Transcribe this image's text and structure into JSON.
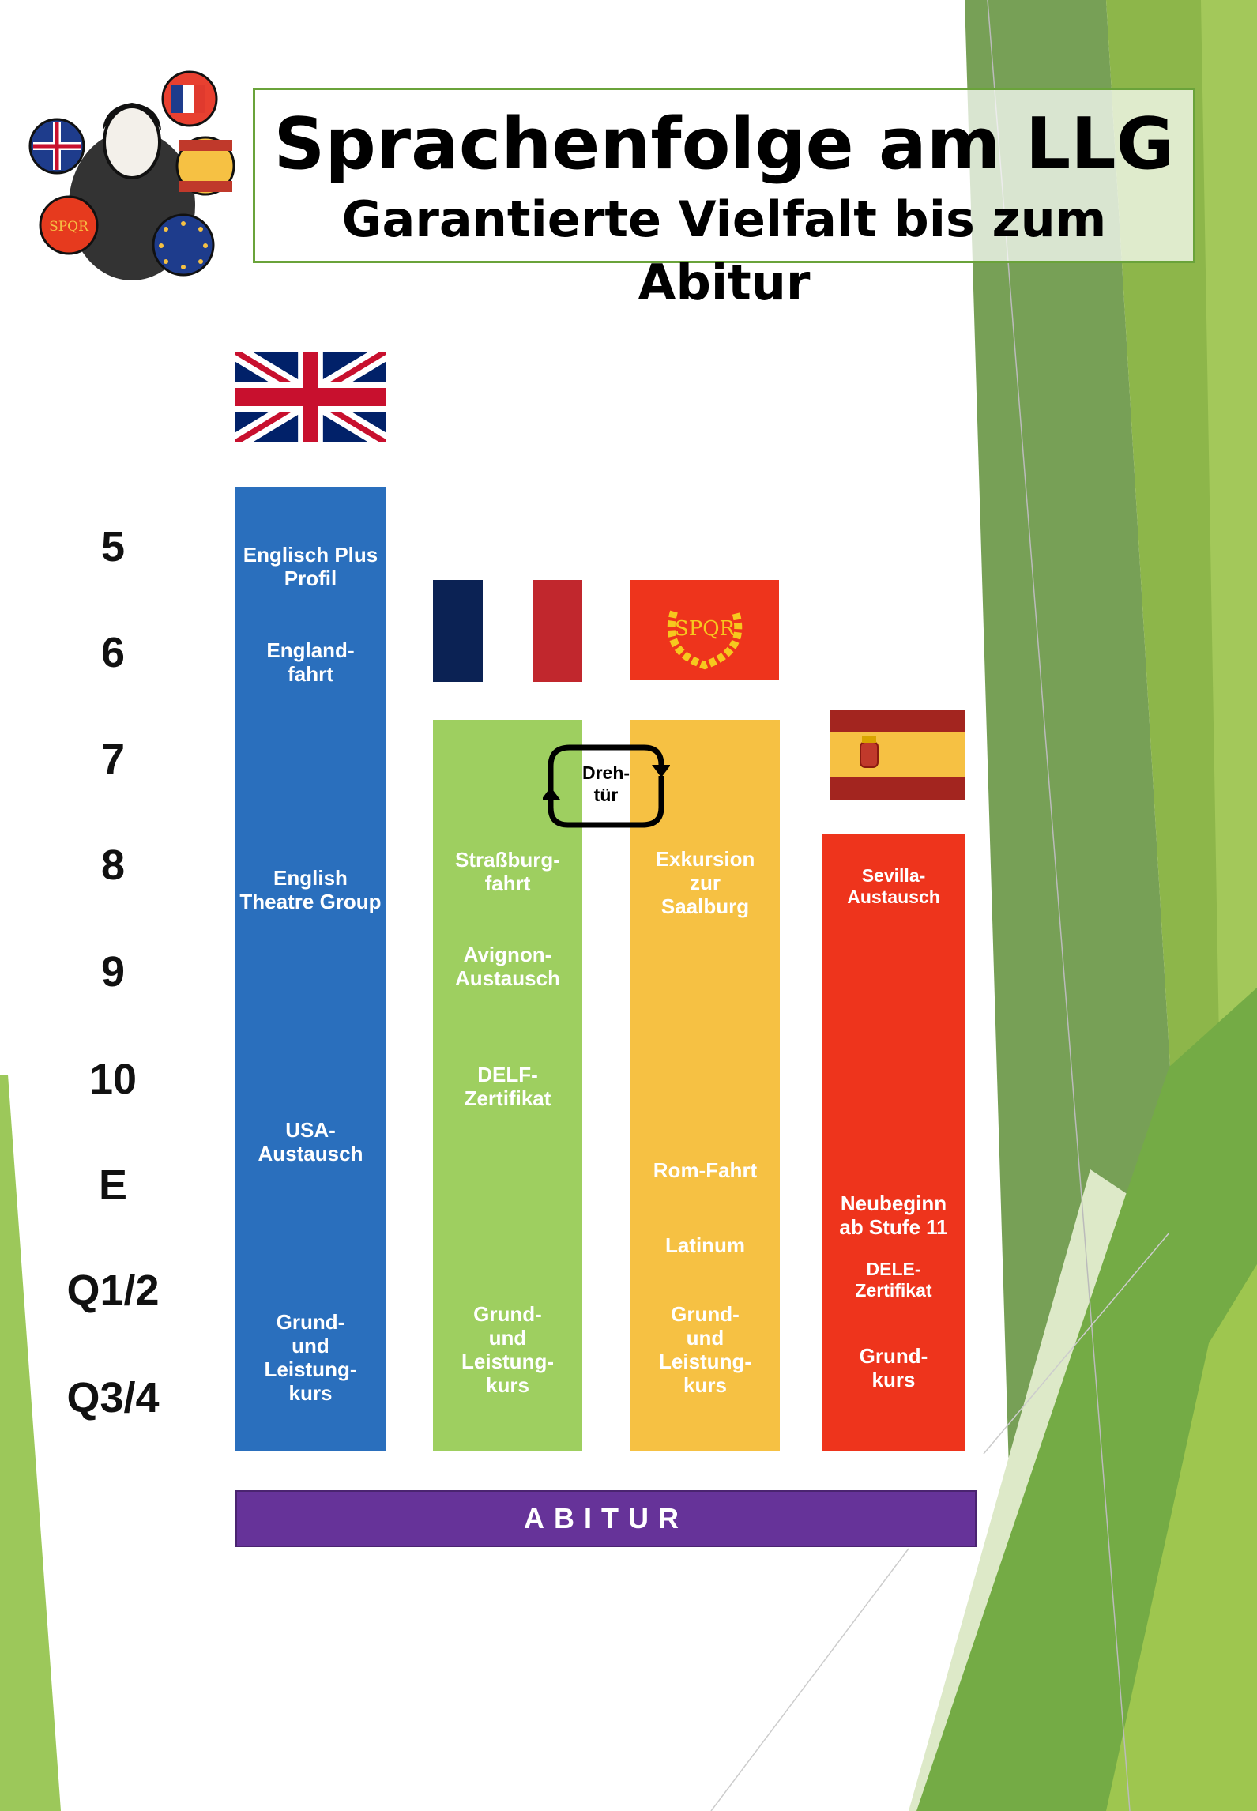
{
  "header": {
    "title": "Sprachenfolge am LLG",
    "subtitle": "Garantierte Vielfalt bis zum Abitur",
    "logo_text": "SPQR"
  },
  "grades": [
    "5",
    "6",
    "7",
    "8",
    "9",
    "10",
    "E",
    "Q1/2",
    "Q3/4"
  ],
  "columns": {
    "english": {
      "color": "#2a6fbd",
      "flag": "uk-flag",
      "items": [
        "Englisch Plus Profil",
        "England-\nfahrt",
        "English Theatre Group",
        "USA-\nAustausch",
        "Grund-\nund\nLeistung-\nkurs"
      ]
    },
    "french": {
      "color": "#9ecf60",
      "flag": "france-flag",
      "items": [
        "Straßburg-\nfahrt",
        "Avignon-\nAustausch",
        "DELF-\nZertifikat",
        "Grund-\nund\nLeistung-\nkurs"
      ]
    },
    "latin": {
      "color": "#f6c143",
      "flag": "spqr-flag",
      "flag_text": "SPQR",
      "items": [
        "Exkursion\nzur\nSaalburg",
        "Rom-Fahrt",
        "Latinum",
        "Grund-\nund\nLeistung-\nkurs"
      ]
    },
    "spanish": {
      "color": "#ee341c",
      "flag": "spain-flag",
      "items": [
        "Sevilla-\nAustausch",
        "Neubeginn\nab Stufe 11",
        "DELE-\nZertifikat",
        "Grund-\nkurs"
      ]
    }
  },
  "revolving_door": "Dreh-\ntür",
  "abitur": "ABITUR",
  "colors": {
    "abitur": "#663399",
    "frame": "#6aa33a"
  }
}
